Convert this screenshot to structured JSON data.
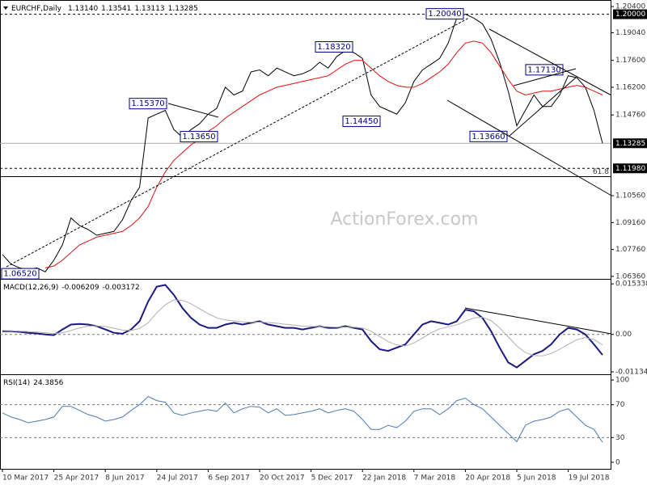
{
  "chart_data": [
    {
      "type": "line",
      "title": "EURCHF,Daily",
      "header_values": [
        {
          "value": 1.1314,
          "label": "1.13140"
        },
        {
          "value": 1.13541,
          "label": "1.13541"
        },
        {
          "value": 1.13113,
          "label": "1.13113"
        },
        {
          "value": 1.13285,
          "label": "1.13285"
        }
      ],
      "watermark": "ActionForex.com",
      "categories": [
        "10 Mar 2017",
        null,
        null,
        null,
        null,
        null,
        "25 Apr 2017",
        null,
        null,
        null,
        null,
        null,
        "8 Jun 2017",
        null,
        null,
        null,
        null,
        null,
        "24 Jul 2017",
        null,
        null,
        null,
        null,
        null,
        "6 Sep 2017",
        null,
        null,
        null,
        null,
        null,
        "20 Oct 2017",
        null,
        null,
        null,
        null,
        null,
        "5 Dec 2017",
        null,
        null,
        null,
        null,
        null,
        "22 Jan 2018",
        null,
        null,
        null,
        null,
        null,
        "7 Mar 2018",
        null,
        null,
        null,
        null,
        null,
        "20 Apr 2018",
        null,
        null,
        null,
        null,
        null,
        "5 Jun 2018",
        null,
        null,
        null,
        null,
        null,
        "19 Jul 2018",
        null,
        null,
        null,
        null
      ],
      "series": [
        {
          "color": "#000000",
          "values": [
            1.075,
            1.07,
            1.068,
            1.067,
            1.068,
            1.066,
            1.072,
            1.08,
            1.094,
            1.09,
            1.088,
            1.085,
            1.086,
            1.087,
            1.093,
            1.103,
            1.11,
            1.146,
            1.148,
            1.15,
            1.14,
            1.136,
            1.14,
            1.143,
            1.148,
            1.151,
            1.162,
            1.158,
            1.16,
            1.17,
            1.171,
            1.168,
            1.172,
            1.17,
            1.168,
            1.169,
            1.171,
            1.175,
            1.172,
            1.178,
            1.181,
            1.18,
            1.177,
            1.158,
            1.152,
            1.15,
            1.148,
            1.154,
            1.165,
            1.171,
            1.174,
            1.177,
            1.185,
            1.198,
            1.2,
            1.198,
            1.195,
            1.187,
            1.175,
            1.16,
            1.142,
            1.15,
            1.158,
            1.152,
            1.152,
            1.158,
            1.168,
            1.167,
            1.162,
            1.15,
            1.13285
          ]
        },
        {
          "color": "#e01010",
          "values": [
            null,
            null,
            null,
            null,
            null,
            1.068,
            1.069,
            1.072,
            1.076,
            1.08,
            1.082,
            1.084,
            1.085,
            1.086,
            1.087,
            1.09,
            1.094,
            1.1,
            1.11,
            1.118,
            1.124,
            1.128,
            1.132,
            1.135,
            1.139,
            1.142,
            1.146,
            1.149,
            1.152,
            1.155,
            1.158,
            1.16,
            1.162,
            1.163,
            1.164,
            1.165,
            1.166,
            1.167,
            1.168,
            1.171,
            1.174,
            1.176,
            1.176,
            1.172,
            1.168,
            1.165,
            1.163,
            1.162,
            1.162,
            1.164,
            1.167,
            1.17,
            1.174,
            1.18,
            1.185,
            1.186,
            1.185,
            1.18,
            1.173,
            1.166,
            1.16,
            1.158,
            1.159,
            1.16,
            1.16,
            1.161,
            1.162,
            1.163,
            1.162,
            1.16,
            1.158
          ]
        }
      ],
      "ylim": [
        1.0623,
        1.2074
      ],
      "yticks": [
        {
          "value": 1.0636,
          "label": "1.06360"
        },
        {
          "value": 1.0776,
          "label": "1.07760"
        },
        {
          "value": 1.0916,
          "label": "1.09160"
        },
        {
          "value": 1.1056,
          "label": "1.10560"
        },
        {
          "value": 1.1476,
          "label": "1.14760"
        },
        {
          "value": 1.162,
          "label": "1.16200"
        },
        {
          "value": 1.176,
          "label": "1.17600"
        },
        {
          "value": 1.1904,
          "label": "1.19040"
        },
        {
          "value": 1.204,
          "label": "1.20400"
        }
      ],
      "levels": [
        {
          "value": 1.2,
          "label": "1.20000"
        },
        {
          "value": 1.1198,
          "label": "1.11980"
        }
      ],
      "last_price": {
        "value": 1.13285,
        "label": "1.13285"
      },
      "fib_line": 1.1155,
      "fib_label": "61.8",
      "annotations": [
        {
          "value": 1.0652,
          "label": "1.06520"
        },
        {
          "value": 1.1365,
          "label": "1.13650"
        },
        {
          "value": 1.1537,
          "label": "1.15370"
        },
        {
          "value": 1.1832,
          "label": "1.18320"
        },
        {
          "value": 1.1445,
          "label": "1.14450"
        },
        {
          "value": 1.2004,
          "label": "1.20040"
        },
        {
          "value": 1.1366,
          "label": "1.13660"
        },
        {
          "value": 1.1713,
          "label": "1.17130"
        }
      ]
    },
    {
      "type": "line",
      "title": "MACD(12,26,9)",
      "header_values": [
        -0.006209,
        -0.003172
      ],
      "series": [
        {
          "color": "#1a1a80",
          "values": [
            0.001,
            0.001,
            0.0008,
            0.0005,
            0.0003,
            0,
            -0.0002,
            0.0015,
            0.003,
            0.0032,
            0.003,
            0.0025,
            0.0015,
            0.0005,
            0.0002,
            0.0015,
            0.004,
            0.01,
            0.0145,
            0.015,
            0.012,
            0.008,
            0.005,
            0.003,
            0.002,
            0.002,
            0.003,
            0.0035,
            0.003,
            0.0035,
            0.004,
            0.003,
            0.0025,
            0.002,
            0.002,
            0.0015,
            0.002,
            0.0025,
            0.002,
            0.002,
            0.0025,
            0.002,
            0.0015,
            -0.002,
            -0.0045,
            -0.005,
            -0.004,
            -0.003,
            0,
            0.003,
            0.004,
            0.0035,
            0.003,
            0.004,
            0.0075,
            0.007,
            0.005,
            0.001,
            -0.004,
            -0.0085,
            -0.01,
            -0.008,
            -0.006,
            -0.005,
            -0.003,
            0,
            0.002,
            0.0015,
            0,
            -0.003,
            -0.006209
          ]
        },
        {
          "color": "#b0b0b0",
          "values": [
            0.0012,
            0.0011,
            0.001,
            0.0009,
            0.0007,
            0.0005,
            0.0003,
            0.0005,
            0.0012,
            0.002,
            0.0025,
            0.0026,
            0.0024,
            0.0019,
            0.0013,
            0.0012,
            0.0018,
            0.0035,
            0.0065,
            0.009,
            0.0105,
            0.0103,
            0.0093,
            0.0078,
            0.0063,
            0.005,
            0.0044,
            0.0041,
            0.0038,
            0.0037,
            0.0037,
            0.0036,
            0.0034,
            0.0031,
            0.0028,
            0.0025,
            0.0024,
            0.0024,
            0.0023,
            0.0022,
            0.0022,
            0.0022,
            0.002,
            0.001,
            -0.0006,
            -0.0022,
            -0.0032,
            -0.0035,
            -0.0026,
            -0.0011,
            0.0005,
            0.0017,
            0.0023,
            0.0029,
            0.004,
            0.005,
            0.0052,
            0.0042,
            0.002,
            -0.0007,
            -0.0035,
            -0.0055,
            -0.0064,
            -0.0065,
            -0.0058,
            -0.0045,
            -0.003,
            -0.0016,
            -0.001,
            -0.0015,
            -0.003172
          ]
        }
      ],
      "ylim": [
        -0.01207,
        0.01684
      ],
      "yticks": [
        -0.011344,
        {
          "value": 0,
          "label": "0.00"
        },
        0.015338
      ],
      "levels": [
        0
      ]
    },
    {
      "type": "line",
      "title": "RSI(14)",
      "header_values": [
        24.3856
      ],
      "series": [
        {
          "color": "#4a7ab5",
          "values": [
            60,
            55,
            52,
            48,
            50,
            52,
            55,
            68,
            68,
            63,
            58,
            55,
            50,
            52,
            55,
            63,
            70,
            80,
            75,
            73,
            60,
            57,
            60,
            62,
            64,
            62,
            72,
            60,
            65,
            68,
            67,
            60,
            65,
            57,
            58,
            60,
            62,
            65,
            60,
            63,
            65,
            62,
            52,
            40,
            40,
            45,
            42,
            50,
            62,
            65,
            65,
            58,
            65,
            75,
            78,
            70,
            65,
            55,
            45,
            35,
            25,
            45,
            50,
            52,
            55,
            62,
            65,
            55,
            45,
            40,
            24.3856
          ]
        }
      ],
      "ylim": [
        -8,
        107
      ],
      "yticks": [
        0,
        30,
        70,
        100
      ],
      "levels": [
        30,
        70
      ]
    }
  ]
}
